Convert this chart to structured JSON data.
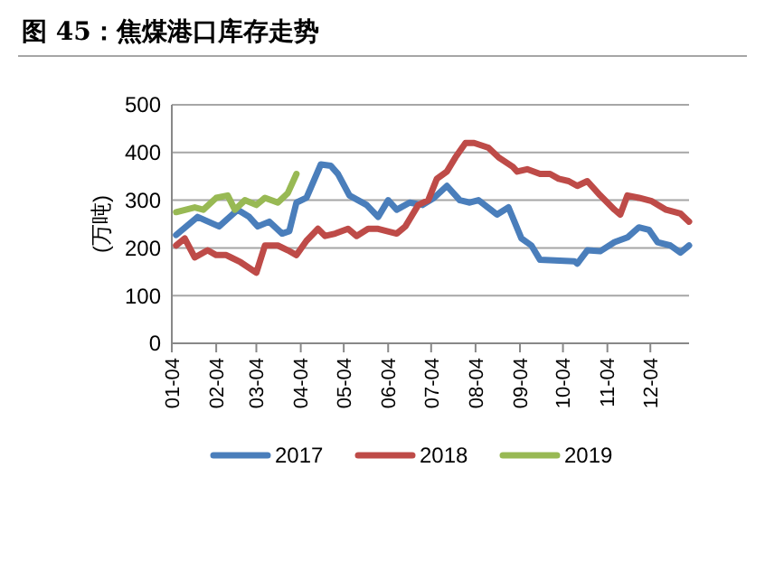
{
  "chart_data": {
    "type": "line",
    "title": "图 45：焦煤港口库存走势",
    "ylabel": "(万吨)",
    "xlim": [
      "--01-04",
      "--12-31"
    ],
    "xticks": [
      {
        "value": "--01-04",
        "label": "01-04"
      },
      {
        "value": "--02-04",
        "label": "02-04"
      },
      {
        "value": "--03-04",
        "label": "03-04"
      },
      {
        "value": "--04-04",
        "label": "04-04"
      },
      {
        "value": "--05-04",
        "label": "05-04"
      },
      {
        "value": "--06-04",
        "label": "06-04"
      },
      {
        "value": "--07-04",
        "label": "07-04"
      },
      {
        "value": "--08-04",
        "label": "08-04"
      },
      {
        "value": "--09-04",
        "label": "09-04"
      },
      {
        "value": "--10-04",
        "label": "10-04"
      },
      {
        "value": "--11-04",
        "label": "11-04"
      },
      {
        "value": "--12-04",
        "label": "12-04"
      }
    ],
    "ylim": [
      0,
      500
    ],
    "yticks": [
      0,
      100,
      200,
      300,
      400,
      500
    ],
    "grid": "y",
    "legend": "bottom",
    "line_style": "solid",
    "series": [
      {
        "name": "2017",
        "color": "#4a7ebb",
        "x": [
          "--01-07",
          "--01-22",
          "--02-06",
          "--02-19",
          "--02-27",
          "--03-05",
          "--03-13",
          "--03-22",
          "--03-27",
          "--04-01",
          "--04-08",
          "--04-18",
          "--04-25",
          "--04-30",
          "--05-08",
          "--05-20",
          "--05-28",
          "--06-04",
          "--06-10",
          "--06-19",
          "--06-28",
          "--07-06",
          "--07-15",
          "--07-24",
          "--07-31",
          "--08-06",
          "--08-19",
          "--08-27",
          "--09-05",
          "--09-12",
          "--09-18",
          "--10-12",
          "--10-14",
          "--10-21",
          "--10-30",
          "--11-09",
          "--11-18",
          "--11-26",
          "--12-03",
          "--12-09",
          "--12-18",
          "--12-25",
          "--12-31"
        ],
        "values": [
          227,
          265,
          245,
          280,
          265,
          245,
          255,
          230,
          235,
          295,
          305,
          375,
          372,
          355,
          310,
          290,
          265,
          300,
          280,
          295,
          290,
          305,
          330,
          300,
          295,
          300,
          270,
          285,
          220,
          205,
          175,
          172,
          167,
          195,
          193,
          212,
          222,
          243,
          238,
          212,
          205,
          190,
          205
        ]
      },
      {
        "name": "2018",
        "color": "#be4b48",
        "x": [
          "--01-07",
          "--01-13",
          "--01-20",
          "--01-29",
          "--02-04",
          "--02-11",
          "--02-21",
          "--03-04",
          "--03-10",
          "--03-19",
          "--03-26",
          "--04-01",
          "--04-08",
          "--04-16",
          "--04-21",
          "--04-28",
          "--05-07",
          "--05-13",
          "--05-21",
          "--05-28",
          "--06-10",
          "--06-16",
          "--06-25",
          "--07-02",
          "--07-08",
          "--07-15",
          "--07-21",
          "--07-28",
          "--08-03",
          "--08-13",
          "--08-20",
          "--08-30",
          "--09-02",
          "--09-09",
          "--09-18",
          "--09-25",
          "--10-01",
          "--10-08",
          "--10-14",
          "--10-21",
          "--10-30",
          "--11-09",
          "--11-13",
          "--11-18",
          "--11-26",
          "--12-05",
          "--12-15",
          "--12-25",
          "--12-31"
        ],
        "values": [
          205,
          220,
          180,
          195,
          185,
          185,
          170,
          148,
          205,
          205,
          195,
          185,
          215,
          240,
          225,
          230,
          240,
          225,
          240,
          240,
          230,
          245,
          290,
          300,
          345,
          360,
          390,
          420,
          420,
          410,
          390,
          370,
          360,
          365,
          355,
          355,
          345,
          340,
          330,
          340,
          310,
          280,
          270,
          310,
          305,
          298,
          280,
          272,
          255
        ]
      },
      {
        "name": "2019",
        "color": "#98b954",
        "x": [
          "--01-07",
          "--01-20",
          "--01-26",
          "--02-04",
          "--02-12",
          "--02-17",
          "--02-24",
          "--03-04",
          "--03-10",
          "--03-19",
          "--03-26",
          "--04-01"
        ],
        "values": [
          275,
          285,
          280,
          305,
          310,
          280,
          300,
          290,
          305,
          295,
          315,
          355
        ]
      }
    ]
  }
}
